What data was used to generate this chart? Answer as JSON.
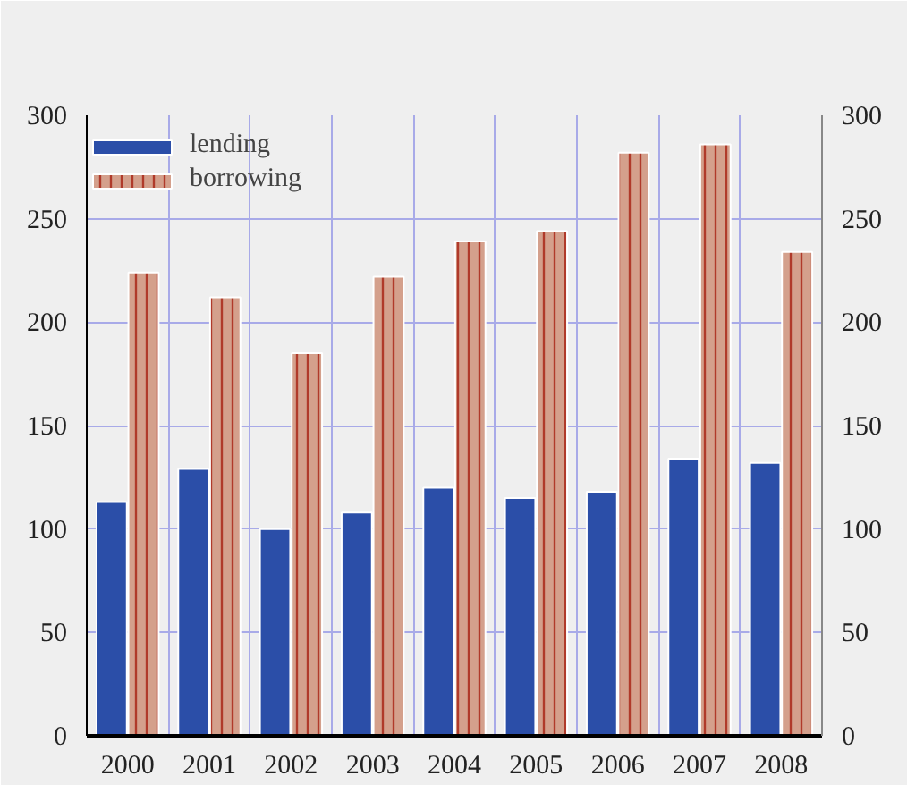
{
  "chart_data": {
    "type": "bar",
    "categories": [
      "2000",
      "2001",
      "2002",
      "2003",
      "2004",
      "2005",
      "2006",
      "2007",
      "2008"
    ],
    "series": [
      {
        "name": "lending",
        "color": "#2b4ea8",
        "values": [
          113,
          129,
          100,
          108,
          120,
          115,
          118,
          134,
          132
        ]
      },
      {
        "name": "borrowing",
        "color": "#d4a08c",
        "values": [
          224,
          212,
          185,
          222,
          239,
          244,
          282,
          286,
          234
        ]
      }
    ],
    "ylim": [
      0,
      300
    ],
    "yticks": [
      0,
      50,
      100,
      150,
      200,
      250,
      300
    ],
    "y2lim": [
      0,
      300
    ],
    "y2ticks": [
      0,
      50,
      100,
      150,
      200,
      250,
      300
    ],
    "grid": true,
    "legend": "top left"
  }
}
